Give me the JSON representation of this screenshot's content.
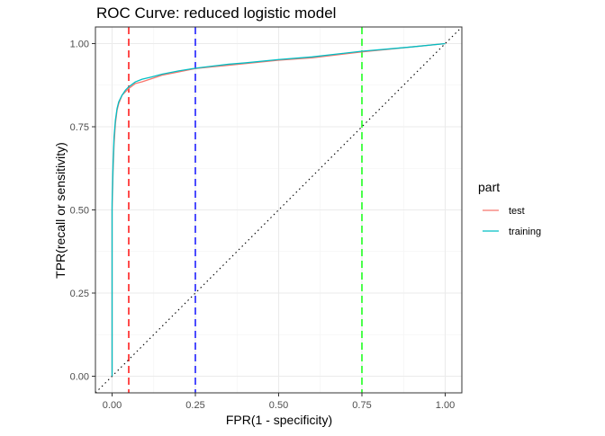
{
  "chart_data": {
    "type": "line",
    "title": "ROC Curve: reduced logistic model",
    "xlabel": "FPR(1 - specificity)",
    "ylabel": "TPR(recall or sensitivity)",
    "xlim": [
      -0.05,
      1.05
    ],
    "ylim": [
      -0.05,
      1.05
    ],
    "x_ticks": [
      0.0,
      0.25,
      0.5,
      0.75,
      1.0
    ],
    "x_tick_labels": [
      "0.00",
      "0.25",
      "0.50",
      "0.75",
      "1.00"
    ],
    "y_ticks": [
      0.0,
      0.25,
      0.5,
      0.75,
      1.0
    ],
    "y_tick_labels": [
      "0.00",
      "0.25",
      "0.50",
      "0.75",
      "1.00"
    ],
    "grid": true,
    "legend": {
      "title": "part",
      "position": "right",
      "entries": [
        {
          "name": "test",
          "color": "#F8766D"
        },
        {
          "name": "training",
          "color": "#00BFC4"
        }
      ]
    },
    "series": [
      {
        "name": "test",
        "color": "#F8766D",
        "x": [
          0.0,
          0.0,
          0.003,
          0.006,
          0.01,
          0.015,
          0.02,
          0.03,
          0.04,
          0.05,
          0.07,
          0.09,
          0.12,
          0.15,
          0.2,
          0.25,
          0.3,
          0.35,
          0.4,
          0.5,
          0.6,
          0.75,
          0.9,
          1.0
        ],
        "y": [
          0.0,
          0.5,
          0.62,
          0.7,
          0.76,
          0.8,
          0.82,
          0.845,
          0.855,
          0.865,
          0.88,
          0.885,
          0.895,
          0.905,
          0.915,
          0.925,
          0.93,
          0.935,
          0.94,
          0.95,
          0.957,
          0.975,
          0.99,
          1.0
        ]
      },
      {
        "name": "training",
        "color": "#00BFC4",
        "x": [
          0.0,
          0.0,
          0.003,
          0.006,
          0.01,
          0.015,
          0.02,
          0.03,
          0.04,
          0.05,
          0.07,
          0.09,
          0.12,
          0.15,
          0.2,
          0.25,
          0.3,
          0.35,
          0.4,
          0.5,
          0.6,
          0.75,
          0.9,
          1.0
        ],
        "y": [
          0.0,
          0.52,
          0.64,
          0.72,
          0.77,
          0.805,
          0.825,
          0.845,
          0.86,
          0.87,
          0.885,
          0.893,
          0.9,
          0.908,
          0.918,
          0.926,
          0.932,
          0.938,
          0.942,
          0.952,
          0.96,
          0.977,
          0.99,
          1.0
        ]
      }
    ],
    "reference_lines": [
      {
        "type": "vertical",
        "x": 0.05,
        "color": "#FF0000",
        "style": "dashed"
      },
      {
        "type": "vertical",
        "x": 0.25,
        "color": "#0000FF",
        "style": "dashed"
      },
      {
        "type": "vertical",
        "x": 0.75,
        "color": "#00FF00",
        "style": "dashed"
      },
      {
        "type": "diagonal",
        "from": [
          0,
          0
        ],
        "to": [
          1,
          1
        ],
        "color": "#000000",
        "style": "dotted"
      }
    ]
  }
}
